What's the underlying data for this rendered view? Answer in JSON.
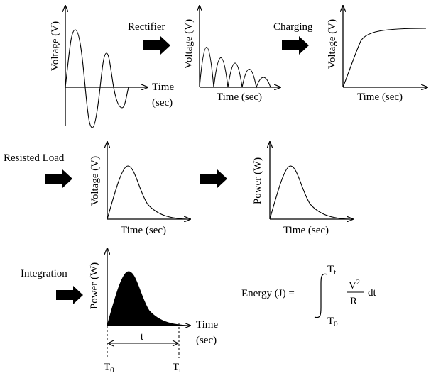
{
  "labels": {
    "time": "Time",
    "sec": "(sec)",
    "time_sec": "Time (sec)",
    "voltage": "Voltage (V)",
    "power": "Power (W)",
    "rectifier": "Rectifier",
    "charging": "Charging",
    "resisted_load": "Resisted Load",
    "integration": "Integration",
    "t": "t"
  },
  "formula": {
    "lhs": "Energy (J) =",
    "upper_main": "T",
    "upper_sub": "t",
    "lower_main": "T",
    "lower_sub": "0",
    "numerator_main": "V",
    "numerator_sup": "2",
    "denominator": "R",
    "dt": "dt"
  },
  "markers": {
    "t0_main": "T",
    "t0_sub": "0",
    "tt_main": "T",
    "tt_sub": "t"
  },
  "colors": {
    "line": "#000000",
    "arrow_fill": "#000000",
    "area_fill": "#000000",
    "background": "#ffffff"
  }
}
